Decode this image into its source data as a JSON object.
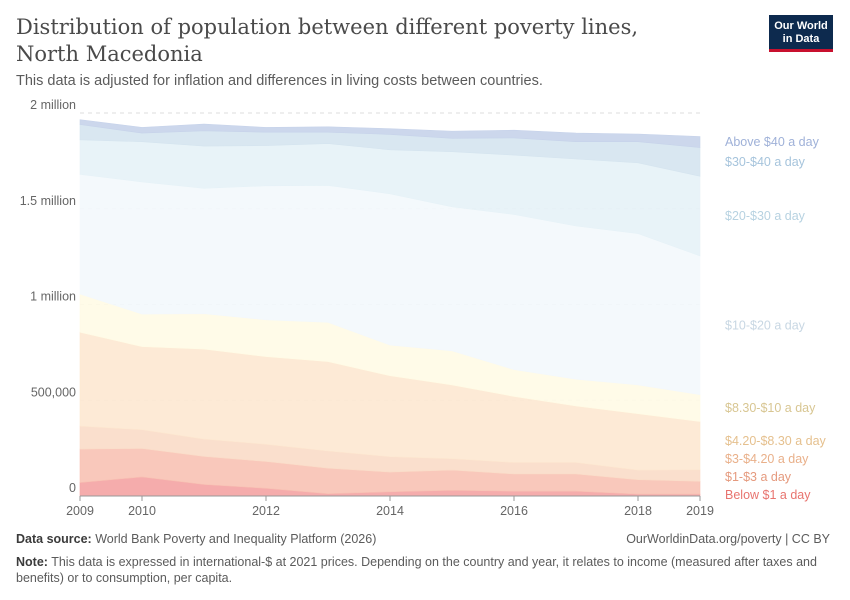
{
  "header": {
    "title": "Distribution of population between different poverty lines, North Macedonia",
    "subtitle": "This data is adjusted for inflation and differences in living costs between countries.",
    "logo_line1": "Our World",
    "logo_line2": "in Data"
  },
  "footer": {
    "source_label": "Data source:",
    "source_text": "World Bank Poverty and Inequality Platform (2026)",
    "license": "OurWorldinData.org/poverty | CC BY",
    "note_label": "Note:",
    "note_text": "This data is expressed in international-$ at 2021 prices. Depending on the country and year, it relates to income (measured after taxes and benefits) or to consumption, per capita."
  },
  "chart_data": {
    "type": "area",
    "stacked": true,
    "x": [
      2009,
      2010,
      2011,
      2012,
      2013,
      2014,
      2015,
      2016,
      2017,
      2018,
      2019
    ],
    "xticks": [
      "2009",
      "2010",
      "2012",
      "2014",
      "2016",
      "2018",
      "2019"
    ],
    "yticks": [
      {
        "value": 0,
        "label": "0"
      },
      {
        "value": 500000,
        "label": "500,000"
      },
      {
        "value": 1000000,
        "label": "1 million"
      },
      {
        "value": 1500000,
        "label": "1.5 million"
      },
      {
        "value": 2000000,
        "label": "2 million"
      }
    ],
    "ylim": [
      0,
      2000000
    ],
    "grid": true,
    "legend_position": "right",
    "series": [
      {
        "name": "Below $1 a day",
        "color": "#f4a3a3",
        "label_color": "#e8746f",
        "values": [
          70000,
          100000,
          60000,
          40000,
          12000,
          22000,
          30000,
          25000,
          25000,
          10000,
          10000
        ]
      },
      {
        "name": "$1-$3 a day",
        "color": "#f8c2b4",
        "label_color": "#e59a7e",
        "values": [
          175000,
          148000,
          147000,
          140000,
          133000,
          103000,
          105000,
          90000,
          90000,
          75000,
          67000
        ]
      },
      {
        "name": "$3-$4.20 a day",
        "color": "#fadcc8",
        "label_color": "#e9b08a",
        "values": [
          120000,
          98000,
          90000,
          90000,
          90000,
          80000,
          60000,
          60000,
          60000,
          50000,
          60000
        ]
      },
      {
        "name": "$4.20-$8.30 a day",
        "color": "#fde8d1",
        "label_color": "#e5c08e",
        "values": [
          490000,
          434000,
          470000,
          458000,
          467000,
          423000,
          385000,
          345000,
          295000,
          295000,
          252000
        ]
      },
      {
        "name": "$8.30-$10 a day",
        "color": "#fffbe5",
        "label_color": "#d8c692",
        "values": [
          200000,
          170000,
          185000,
          192000,
          205000,
          160000,
          178000,
          140000,
          140000,
          150000,
          140000
        ]
      },
      {
        "name": "$10-$20 a day",
        "color": "#f3f8fc",
        "label_color": "#c8d7e3",
        "values": [
          625000,
          690000,
          655000,
          700000,
          715000,
          790000,
          752000,
          810000,
          800000,
          790000,
          725000
        ]
      },
      {
        "name": "$20-$30 a day",
        "color": "#e6f2f7",
        "label_color": "#b7d2e1",
        "values": [
          180000,
          210000,
          220000,
          210000,
          218000,
          230000,
          288000,
          310000,
          350000,
          370000,
          416000
        ]
      },
      {
        "name": "$30-$40 a day",
        "color": "#d5e4ef",
        "label_color": "#a6c4dc",
        "values": [
          80000,
          45000,
          80000,
          70000,
          60000,
          80000,
          70000,
          90000,
          90000,
          110000,
          150000
        ]
      },
      {
        "name": "Above $40 a day",
        "color": "#c7d3ea",
        "label_color": "#9fb1d8",
        "values": [
          25000,
          30000,
          35000,
          25000,
          28000,
          30000,
          37000,
          40000,
          45000,
          40000,
          57000
        ]
      }
    ]
  }
}
